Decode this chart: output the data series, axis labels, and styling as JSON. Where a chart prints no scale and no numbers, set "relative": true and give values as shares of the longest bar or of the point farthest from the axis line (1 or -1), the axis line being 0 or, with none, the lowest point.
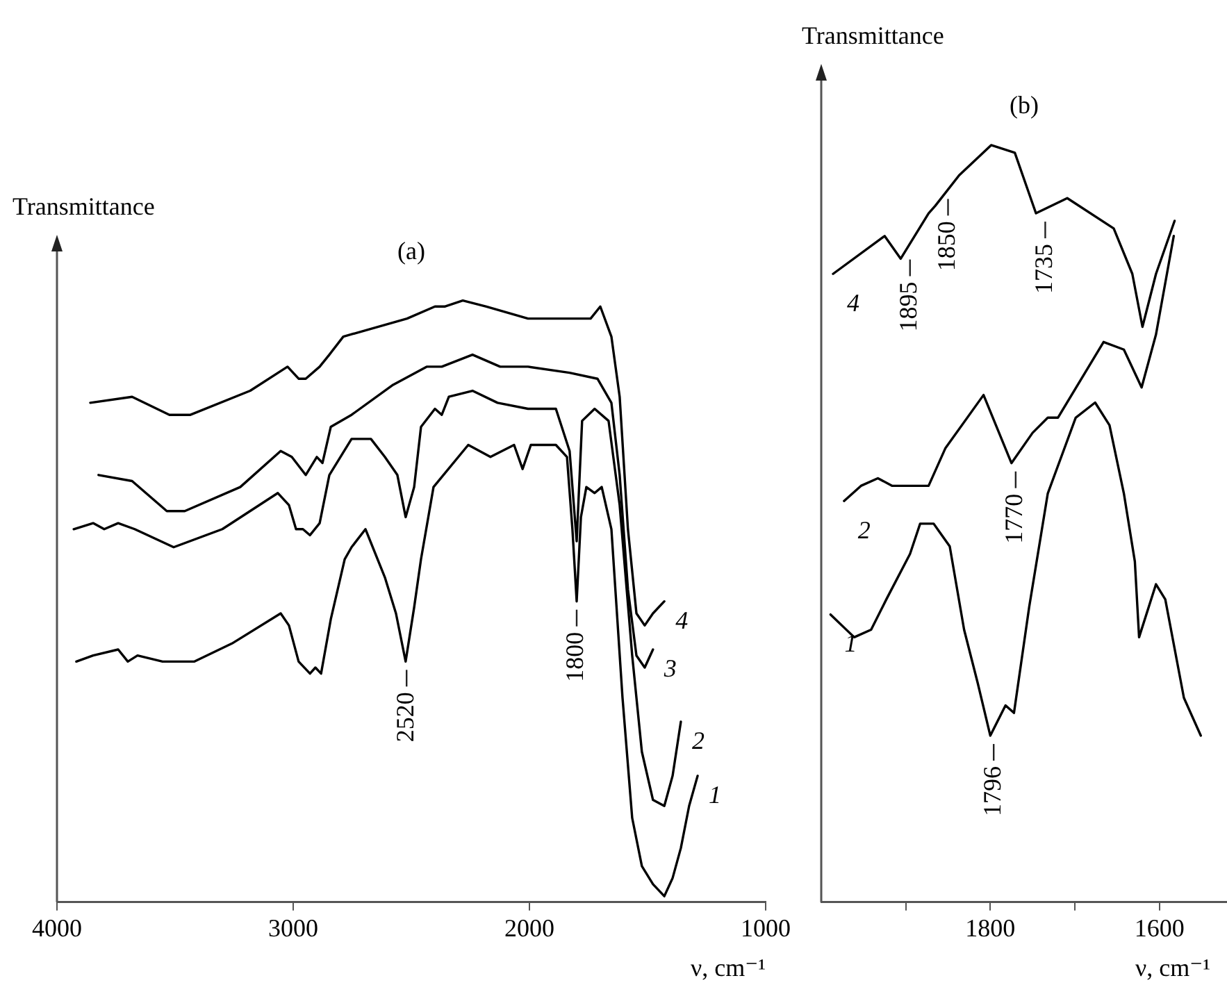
{
  "chart_data": [
    {
      "type": "line",
      "title": "(a)",
      "xlabel": "ν, cm⁻¹",
      "ylabel": "Transmittance",
      "relative": true,
      "xlim": [
        4000,
        1000
      ],
      "xticks": [
        4000,
        3000,
        2000,
        1000
      ],
      "series": [
        {
          "name": "1",
          "color": "#000000",
          "x": [
            3918,
            3847,
            3741,
            3700,
            3659,
            3553,
            3418,
            3259,
            3053,
            3018,
            2977,
            2929,
            2906,
            2882,
            2841,
            2782,
            2753,
            2694,
            2612,
            2565,
            2524,
            2488,
            2459,
            2406,
            2259,
            2165,
            2065,
            2029,
            1994,
            1888,
            1841,
            1818,
            1800,
            1782,
            1759,
            1724,
            1694,
            1653,
            1606,
            1565,
            1524,
            1477,
            1429,
            1394,
            1359,
            1324,
            1288
          ],
          "values": [
            0.4,
            0.41,
            0.42,
            0.4,
            0.41,
            0.4,
            0.4,
            0.43,
            0.48,
            0.46,
            0.4,
            0.38,
            0.39,
            0.38,
            0.47,
            0.57,
            0.59,
            0.62,
            0.54,
            0.48,
            0.4,
            0.49,
            0.57,
            0.69,
            0.76,
            0.74,
            0.76,
            0.72,
            0.76,
            0.76,
            0.74,
            0.62,
            0.5,
            0.64,
            0.69,
            0.68,
            0.69,
            0.62,
            0.34,
            0.14,
            0.06,
            0.03,
            0.01,
            0.04,
            0.09,
            0.16,
            0.21
          ]
        },
        {
          "name": "2",
          "color": "#000000",
          "x": [
            3929,
            3847,
            3800,
            3741,
            3671,
            3506,
            3300,
            3065,
            3018,
            2988,
            2959,
            2929,
            2888,
            2847,
            2753,
            2671,
            2612,
            2559,
            2524,
            2488,
            2459,
            2400,
            2371,
            2341,
            2241,
            2135,
            2006,
            1888,
            1830,
            1800,
            1777,
            1724,
            1665,
            1618,
            1565,
            1524,
            1477,
            1429,
            1394,
            1359
          ],
          "values": [
            0.62,
            0.63,
            0.62,
            0.63,
            0.62,
            0.59,
            0.62,
            0.68,
            0.66,
            0.62,
            0.62,
            0.61,
            0.63,
            0.71,
            0.77,
            0.77,
            0.74,
            0.71,
            0.64,
            0.69,
            0.79,
            0.82,
            0.81,
            0.84,
            0.85,
            0.83,
            0.82,
            0.82,
            0.75,
            0.6,
            0.8,
            0.82,
            0.8,
            0.66,
            0.41,
            0.25,
            0.17,
            0.16,
            0.21,
            0.3
          ]
        },
        {
          "name": "3",
          "color": "#000000",
          "x": [
            3824,
            3682,
            3535,
            3459,
            3224,
            3053,
            3006,
            2947,
            2900,
            2876,
            2841,
            2753,
            2577,
            2435,
            2400,
            2371,
            2241,
            2124,
            2006,
            1830,
            1712,
            1653,
            1618,
            1583,
            1547,
            1512,
            1477
          ],
          "values": [
            0.71,
            0.7,
            0.65,
            0.65,
            0.69,
            0.75,
            0.74,
            0.71,
            0.74,
            0.73,
            0.79,
            0.81,
            0.86,
            0.89,
            0.89,
            0.89,
            0.91,
            0.89,
            0.89,
            0.88,
            0.87,
            0.83,
            0.71,
            0.52,
            0.41,
            0.39,
            0.42
          ]
        },
        {
          "name": "4",
          "color": "#000000",
          "x": [
            3859,
            3682,
            3524,
            3435,
            3182,
            3024,
            2977,
            2947,
            2888,
            2847,
            2788,
            2518,
            2400,
            2359,
            2282,
            2182,
            2006,
            1830,
            1741,
            1700,
            1653,
            1618,
            1583,
            1547,
            1512,
            1477,
            1429
          ],
          "values": [
            0.83,
            0.84,
            0.81,
            0.81,
            0.85,
            0.89,
            0.87,
            0.87,
            0.89,
            0.91,
            0.94,
            0.97,
            0.99,
            0.99,
            1,
            0.99,
            0.97,
            0.97,
            0.97,
            0.99,
            0.94,
            0.84,
            0.62,
            0.48,
            0.46,
            0.48,
            0.5
          ]
        }
      ],
      "annotations": [
        {
          "text": "2520",
          "x": 2520,
          "y": 0.4
        },
        {
          "text": "1800",
          "x": 1800,
          "y": 0.5
        }
      ]
    },
    {
      "type": "line",
      "title": "(b)",
      "xlabel": "ν, cm⁻¹",
      "ylabel": "Transmittance",
      "relative": true,
      "xlim": [
        2000,
        1520
      ],
      "xticks": [
        {
          "value": 1900,
          "label": null
        },
        1800,
        {
          "value": 1700,
          "label": null
        },
        1600
      ],
      "series": [
        {
          "name": "4",
          "color": "#000000",
          "x": [
            1986,
            1925,
            1906,
            1873,
            1865,
            1837,
            1799,
            1771,
            1746,
            1709,
            1654,
            1632,
            1620,
            1604,
            1582
          ],
          "values": [
            0.83,
            0.88,
            0.85,
            0.91,
            0.92,
            0.96,
            1,
            0.99,
            0.91,
            0.93,
            0.89,
            0.83,
            0.76,
            0.83,
            0.9
          ]
        },
        {
          "name": "2",
          "color": "#000000",
          "x": [
            1973,
            1953,
            1933,
            1916,
            1895,
            1873,
            1853,
            1808,
            1775,
            1750,
            1732,
            1720,
            1666,
            1642,
            1621,
            1604,
            1583
          ],
          "values": [
            0.53,
            0.55,
            0.56,
            0.55,
            0.55,
            0.55,
            0.6,
            0.67,
            0.58,
            0.62,
            0.64,
            0.64,
            0.74,
            0.73,
            0.68,
            0.75,
            0.88
          ]
        },
        {
          "name": "1",
          "color": "#000000",
          "x": [
            1989,
            1961,
            1941,
            1923,
            1895,
            1883,
            1867,
            1848,
            1831,
            1815,
            1800,
            1782,
            1772,
            1754,
            1732,
            1699,
            1676,
            1659,
            1642,
            1629,
            1624,
            1604,
            1593,
            1571,
            1551
          ],
          "values": [
            0.38,
            0.35,
            0.36,
            0.4,
            0.46,
            0.5,
            0.5,
            0.47,
            0.36,
            0.29,
            0.22,
            0.26,
            0.25,
            0.39,
            0.54,
            0.64,
            0.66,
            0.63,
            0.54,
            0.45,
            0.35,
            0.42,
            0.4,
            0.27,
            0.22
          ]
        }
      ],
      "annotations": [
        {
          "text": "1895",
          "x": 1895,
          "y": 0.86
        },
        {
          "text": "1850",
          "x": 1850,
          "y": 0.94
        },
        {
          "text": "1735",
          "x": 1735,
          "y": 0.91
        },
        {
          "text": "1770",
          "x": 1770,
          "y": 0.58
        },
        {
          "text": "1796",
          "x": 1796,
          "y": 0.22
        }
      ]
    }
  ]
}
